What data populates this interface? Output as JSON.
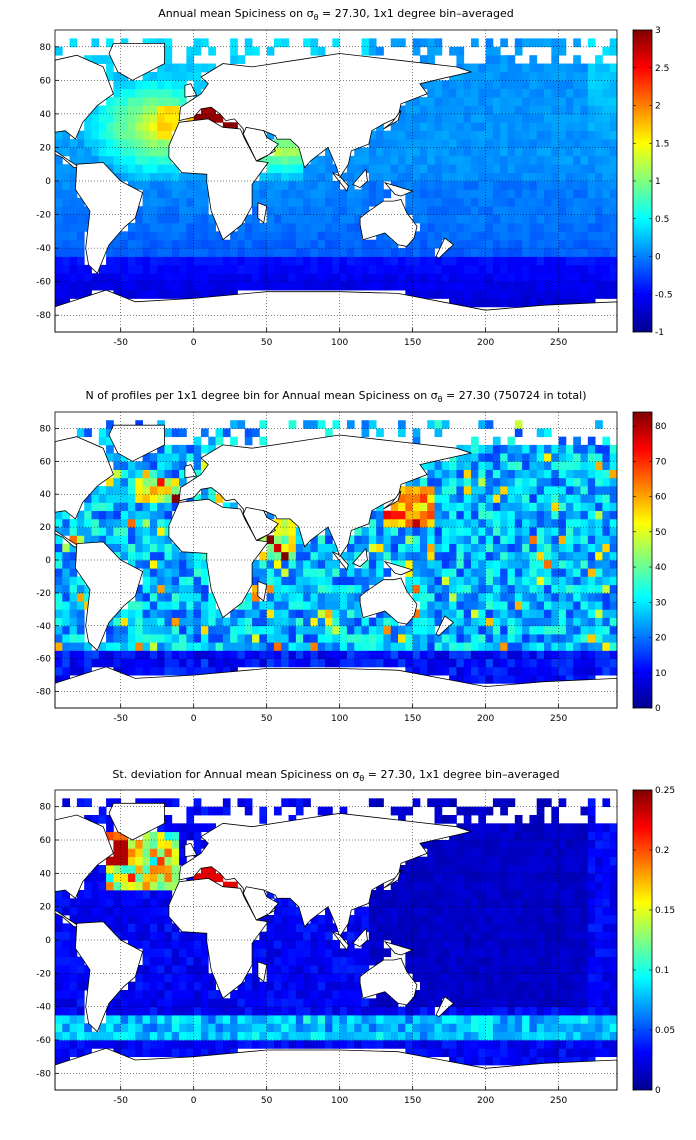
{
  "colors": {
    "land": "#ffffff",
    "ocean_colormap": "jet",
    "grid": "#000000"
  },
  "chart_data": [
    {
      "type": "heatmap",
      "title_prefix": "Annual mean Spiciness on σ",
      "title_sub": "θ",
      "title_suffix": " = 27.30, 1x1 degree bin–averaged",
      "x_ticks": [
        -50,
        0,
        50,
        100,
        150,
        200,
        250
      ],
      "y_ticks": [
        80,
        60,
        40,
        20,
        0,
        -20,
        -40,
        -60,
        -80
      ],
      "xlim": [
        -95,
        290
      ],
      "ylim": [
        -90,
        90
      ],
      "colorbar_ticks": [
        3,
        2.5,
        2,
        1.5,
        1,
        0.5,
        0,
        -0.5,
        -1
      ],
      "clim": [
        -1,
        3
      ],
      "grid": true
    },
    {
      "type": "heatmap",
      "title_prefix": "N of profiles per 1x1 degree bin for Annual mean Spiciness on σ",
      "title_sub": "θ",
      "title_suffix": " = 27.30 (750724 in total)",
      "x_ticks": [
        -50,
        0,
        50,
        100,
        150,
        200,
        250
      ],
      "y_ticks": [
        80,
        60,
        40,
        20,
        0,
        -20,
        -40,
        -60,
        -80
      ],
      "xlim": [
        -95,
        290
      ],
      "ylim": [
        -90,
        90
      ],
      "colorbar_ticks": [
        80,
        70,
        60,
        50,
        40,
        30,
        20,
        10,
        0
      ],
      "clim": [
        0,
        84
      ],
      "grid": true
    },
    {
      "type": "heatmap",
      "title_prefix": "St. deviation for Annual mean Spiciness on σ",
      "title_sub": "θ",
      "title_suffix": " = 27.30, 1x1 degree bin–averaged",
      "x_ticks": [
        -50,
        0,
        50,
        100,
        150,
        200,
        250
      ],
      "y_ticks": [
        80,
        60,
        40,
        20,
        0,
        -20,
        -40,
        -60,
        -80
      ],
      "xlim": [
        -95,
        290
      ],
      "ylim": [
        -90,
        90
      ],
      "colorbar_ticks": [
        0.25,
        0.2,
        0.15,
        0.1,
        0.05,
        0
      ],
      "clim": [
        0,
        0.25
      ],
      "grid": true
    }
  ]
}
